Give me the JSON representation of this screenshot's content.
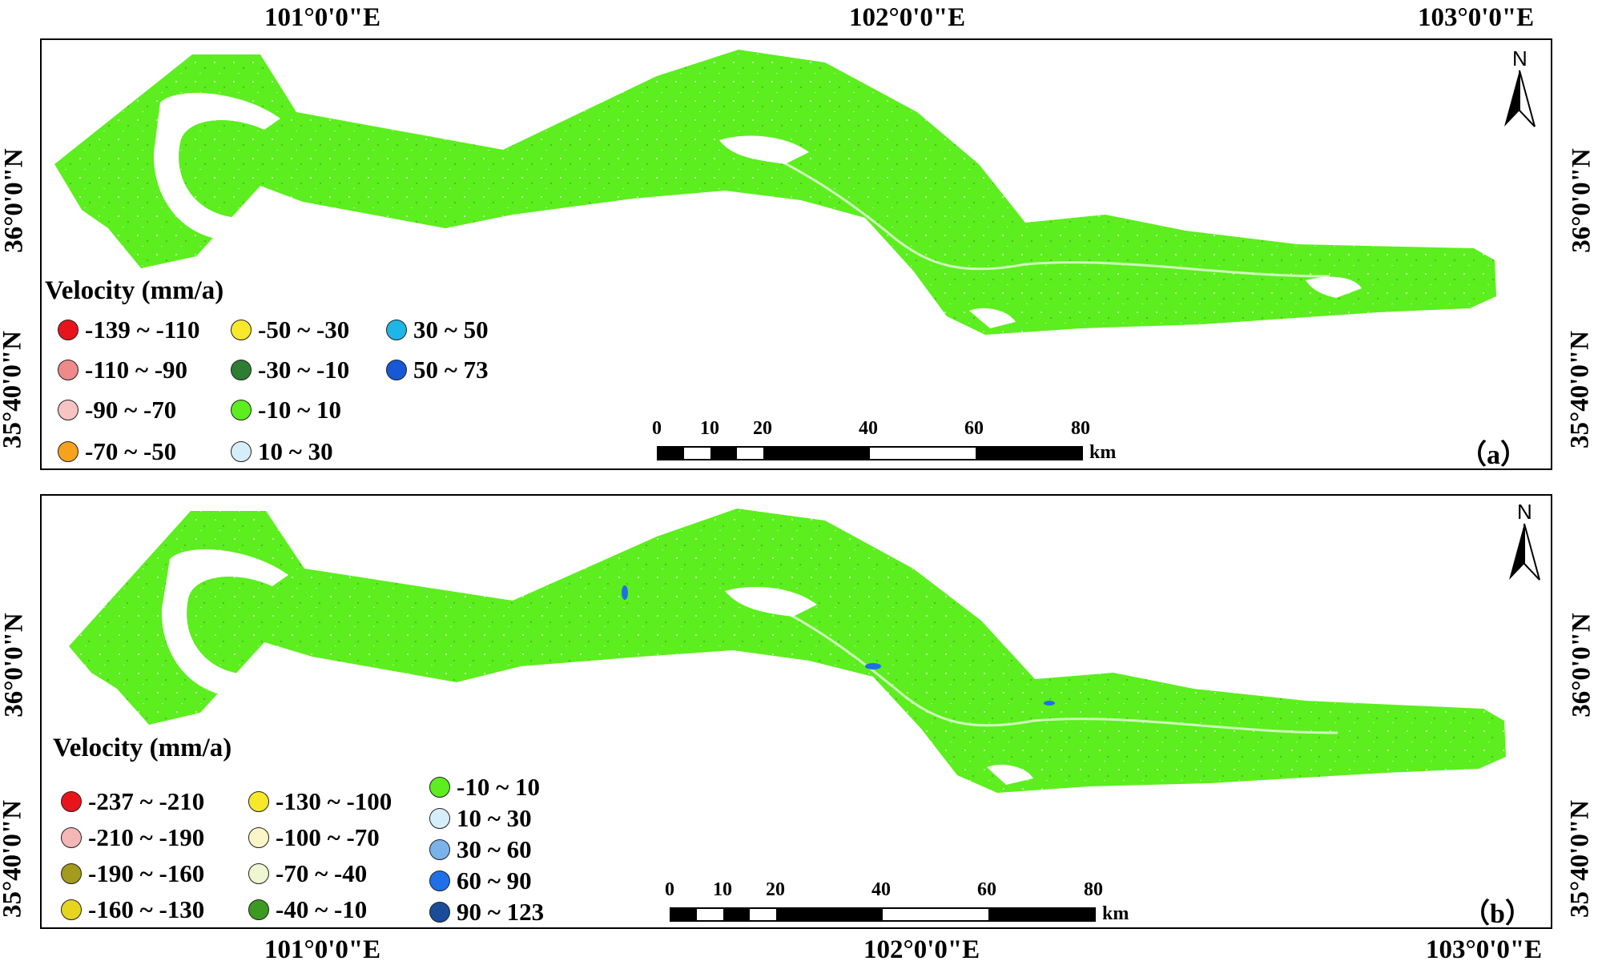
{
  "panels": [
    {
      "id": "a",
      "label": "（a）",
      "top_coords": [
        "101°0'0\"E",
        "102°0'0\"E",
        "103°0'0\"E"
      ],
      "left_coords": [
        "36°0'0\"N",
        "35°40'0\"N"
      ],
      "right_coords": [
        "36°0'0\"N",
        "35°40'0\"N"
      ],
      "north": "N",
      "legend": {
        "title": "Velocity (mm/a)",
        "items": [
          {
            "label": "-139 ~ -110",
            "color": "#e8141c"
          },
          {
            "label": "-110  ~ -90",
            "color": "#ef8a8a"
          },
          {
            "label": "-90 ~ -70",
            "color": "#f7c3c3"
          },
          {
            "label": "-70  ~ -50",
            "color": "#f7a21c"
          },
          {
            "label": "-50  ~ -30",
            "color": "#f7e82a"
          },
          {
            "label": "-30  ~ -10",
            "color": "#2e7d32"
          },
          {
            "label": "-10  ~ 10",
            "color": "#5cee1e"
          },
          {
            "label": "10 ~ 30",
            "color": "#d6eefa"
          },
          {
            "label": "30 ~ 50",
            "color": "#1eb6e6"
          },
          {
            "label": "50 ~ 73",
            "color": "#1758d6"
          }
        ]
      },
      "scalebar": {
        "ticks": [
          "0",
          "10",
          "20",
          "40",
          "60",
          "80"
        ],
        "unit": "km"
      }
    },
    {
      "id": "b",
      "label": "（b）",
      "bottom_coords": [
        "101°0'0\"E",
        "102°0'0\"E",
        "103°0'0\"E"
      ],
      "left_coords": [
        "36°0'0\"N",
        "35°40'0\"N"
      ],
      "right_coords": [
        "36°0'0\"N",
        "35°40'0\"N"
      ],
      "north": "N",
      "legend": {
        "title": "Velocity (mm/a)",
        "items": [
          {
            "label": "-237 ~ -210",
            "color": "#e8141c"
          },
          {
            "label": "-210 ~ -190",
            "color": "#f4b6b6"
          },
          {
            "label": "-190 ~ -160",
            "color": "#a39a1e"
          },
          {
            "label": "-160 ~ -130",
            "color": "#e6d41e"
          },
          {
            "label": "-130 ~ -100",
            "color": "#f7e82a"
          },
          {
            "label": "-100 ~ -70",
            "color": "#fbf6c8"
          },
          {
            "label": "-70  ~ -40",
            "color": "#eef6d2"
          },
          {
            "label": "-40  ~ -10",
            "color": "#3c9a22"
          },
          {
            "label": "-10  ~ 10",
            "color": "#5cee1e"
          },
          {
            "label": "10  ~ 30",
            "color": "#d6eefa"
          },
          {
            "label": "30 ~ 60",
            "color": "#7ab2ea"
          },
          {
            "label": "60 ~ 90",
            "color": "#1f6fe6"
          },
          {
            "label": "90  ~ 123",
            "color": "#1a4c9a"
          }
        ]
      },
      "scalebar": {
        "ticks": [
          "0",
          "10",
          "20",
          "40",
          "60",
          "80"
        ],
        "unit": "km"
      }
    }
  ]
}
